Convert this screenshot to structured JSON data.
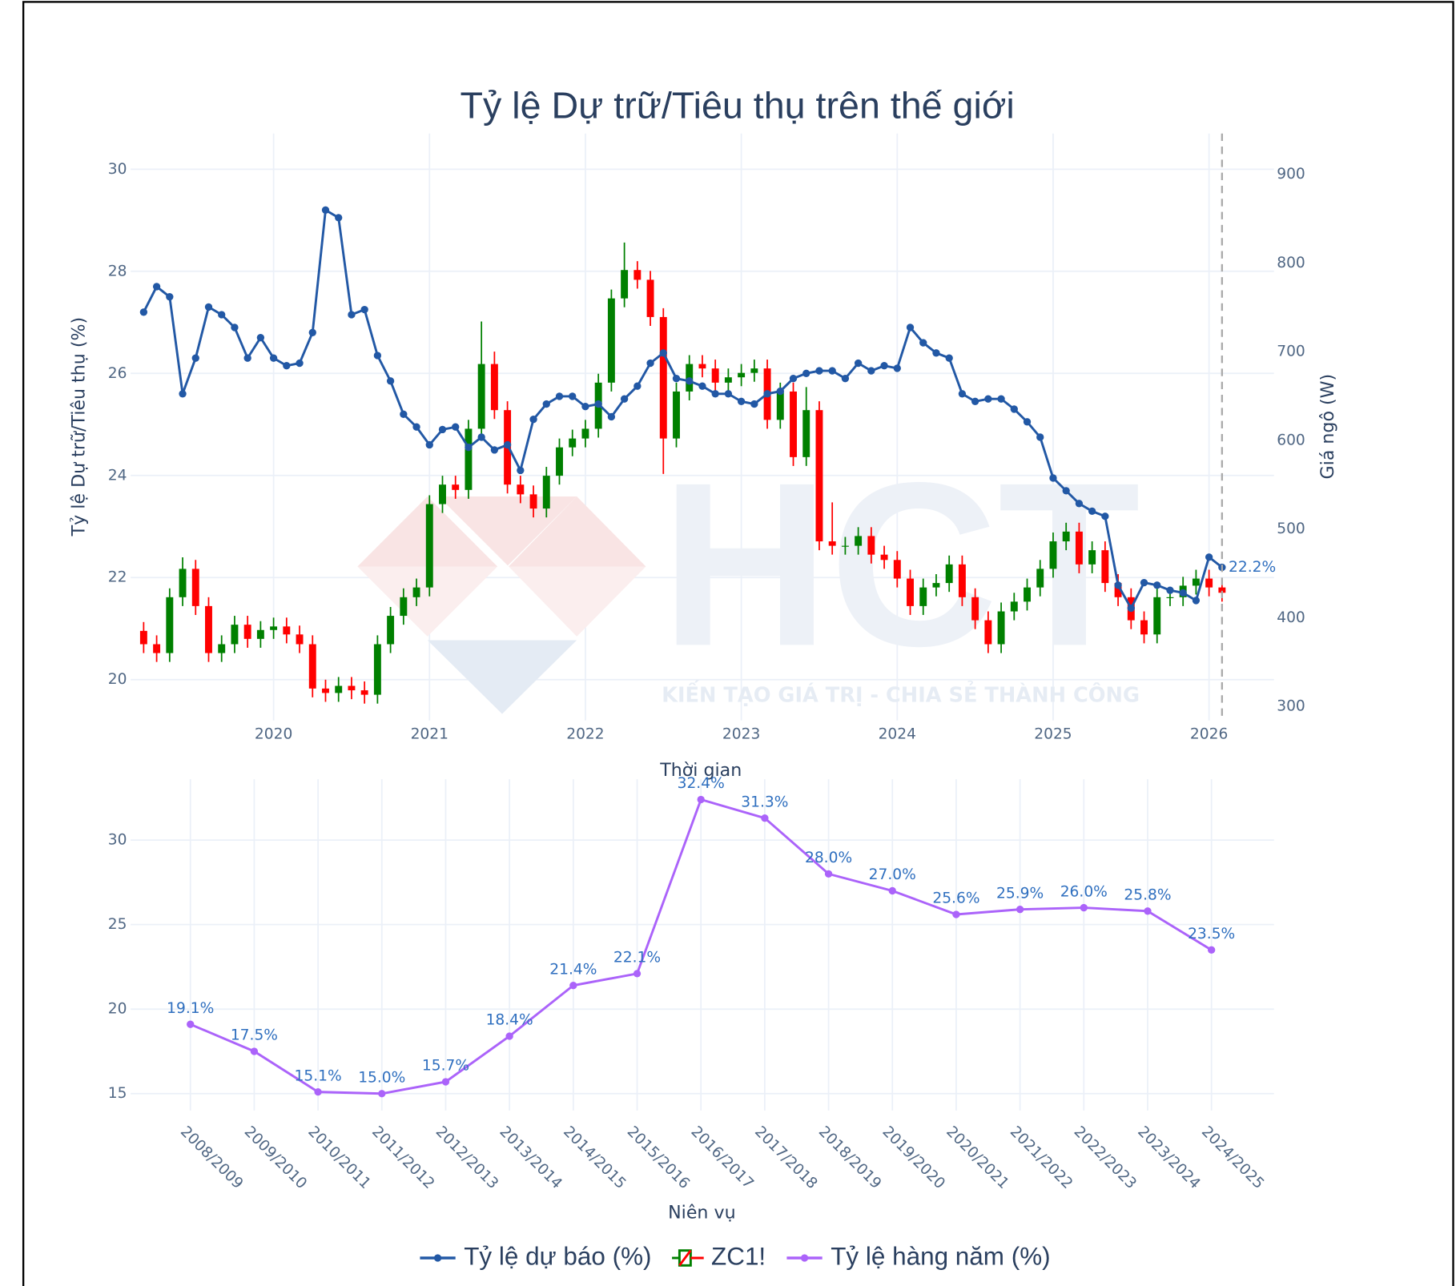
{
  "chart_data": [
    {
      "type": "line",
      "title": "Tỷ lệ Dự trữ/Tiêu thụ trên thế giới",
      "xlabel": "Thời gian",
      "ylabel": "Tỷ lệ Dự trữ/Tiêu thụ (%)",
      "y2label": "Giá ngô (W)",
      "watermark": {
        "logo": "HCT",
        "tagline": "KIẾN TẠO GIÁ TRỊ - CHIA SẺ THÀNH CÔNG"
      },
      "annotations": [
        {
          "text": "22.2%"
        }
      ],
      "grid": true,
      "legend": "bottom",
      "xlim": [
        "2019-02",
        "2026-06"
      ],
      "xticks": [
        2020,
        2021,
        2022,
        2023,
        2024,
        2025,
        2026
      ],
      "ylim": [
        19.2,
        30.7
      ],
      "yticks": [
        20,
        22,
        24,
        26,
        28,
        30
      ],
      "y2lim": [
        284,
        946
      ],
      "y2ticks": [
        300,
        400,
        500,
        600,
        700,
        800,
        900
      ],
      "x": [
        "2019-03",
        "2019-04",
        "2019-05",
        "2019-06",
        "2019-07",
        "2019-08",
        "2019-09",
        "2019-10",
        "2019-11",
        "2019-12",
        "2020-01",
        "2020-02",
        "2020-03",
        "2020-04",
        "2020-05",
        "2020-06",
        "2020-07",
        "2020-08",
        "2020-09",
        "2020-10",
        "2020-11",
        "2020-12",
        "2021-01",
        "2021-02",
        "2021-03",
        "2021-04",
        "2021-05",
        "2021-06",
        "2021-07",
        "2021-08",
        "2021-09",
        "2021-10",
        "2021-11",
        "2021-12",
        "2022-01",
        "2022-02",
        "2022-03",
        "2022-04",
        "2022-05",
        "2022-06",
        "2022-07",
        "2022-08",
        "2022-09",
        "2022-10",
        "2022-11",
        "2022-12",
        "2023-01",
        "2023-02",
        "2023-03",
        "2023-04",
        "2023-05",
        "2023-06",
        "2023-07",
        "2023-08",
        "2023-09",
        "2023-10",
        "2023-11",
        "2023-12",
        "2024-01",
        "2024-02",
        "2024-03",
        "2024-04",
        "2024-05",
        "2024-06",
        "2024-07",
        "2024-08",
        "2024-09",
        "2024-10",
        "2024-11",
        "2024-12",
        "2025-01",
        "2025-02",
        "2025-03",
        "2025-04",
        "2025-05",
        "2025-06",
        "2025-07",
        "2025-08",
        "2025-09",
        "2025-10",
        "2025-11",
        "2025-12",
        "2026-01",
        "2026-02"
      ],
      "series": [
        {
          "name": "Tỷ lệ dự báo (%)",
          "type": "line",
          "color": "#2258a5",
          "values": [
            27.2,
            27.7,
            27.5,
            25.6,
            26.3,
            27.3,
            27.15,
            26.9,
            26.3,
            26.7,
            26.3,
            26.15,
            26.2,
            26.8,
            29.2,
            29.05,
            27.15,
            27.25,
            26.35,
            25.85,
            25.2,
            24.95,
            24.6,
            24.9,
            24.95,
            24.55,
            24.75,
            24.5,
            24.6,
            24.1,
            25.1,
            25.4,
            25.55,
            25.55,
            25.35,
            25.4,
            25.15,
            25.5,
            25.75,
            26.2,
            26.4,
            25.9,
            25.85,
            25.75,
            25.6,
            25.6,
            25.45,
            25.4,
            25.6,
            25.65,
            25.9,
            26.0,
            26.05,
            26.05,
            25.9,
            26.2,
            26.05,
            26.15,
            26.1,
            26.9,
            26.6,
            26.4,
            26.3,
            25.6,
            25.45,
            25.5,
            25.5,
            25.3,
            25.05,
            24.75,
            23.95,
            23.7,
            23.45,
            23.3,
            23.2,
            21.85,
            21.4,
            21.9,
            21.85,
            21.75,
            21.7,
            21.55,
            22.4,
            22.2
          ]
        },
        {
          "name": "ZC1!",
          "type": "candlestick",
          "axis": "y2",
          "increasing_color": "#008000",
          "decreasing_color": "#ff0000",
          "open": [
            385,
            370,
            360,
            423,
            455,
            413,
            360,
            370,
            392,
            376,
            386,
            390,
            381,
            370,
            320,
            315,
            323,
            318,
            313,
            370,
            402,
            423,
            434,
            528,
            550,
            544,
            613,
            686,
            634,
            550,
            539,
            523,
            560,
            592,
            602,
            613,
            665,
            760,
            792,
            781,
            739,
            602,
            655,
            686,
            681,
            665,
            671,
            676,
            681,
            623,
            655,
            581,
            634,
            486,
            481,
            481,
            492,
            471,
            465,
            444,
            413,
            434,
            439,
            460,
            423,
            397,
            370,
            407,
            418,
            434,
            455,
            486,
            497,
            460,
            476,
            439,
            423,
            397,
            381,
            423,
            423,
            436,
            444,
            434
          ],
          "high": [
            395,
            380,
            433,
            468,
            465,
            423,
            380,
            402,
            402,
            396,
            400,
            400,
            391,
            380,
            330,
            333,
            333,
            328,
            380,
            412,
            433,
            444,
            538,
            560,
            560,
            623,
            734,
            700,
            644,
            560,
            549,
            570,
            602,
            612,
            623,
            675,
            770,
            823,
            802,
            791,
            749,
            665,
            696,
            696,
            691,
            681,
            686,
            691,
            691,
            665,
            665,
            660,
            644,
            530,
            491,
            502,
            502,
            481,
            475,
            454,
            444,
            449,
            470,
            470,
            433,
            407,
            417,
            428,
            444,
            465,
            496,
            507,
            507,
            486,
            486,
            449,
            433,
            407,
            433,
            433,
            446,
            454,
            454,
            444
          ],
          "low": [
            360,
            350,
            350,
            413,
            403,
            350,
            350,
            360,
            366,
            366,
            376,
            371,
            360,
            310,
            305,
            305,
            308,
            303,
            303,
            360,
            392,
            413,
            424,
            518,
            534,
            534,
            603,
            624,
            540,
            529,
            513,
            513,
            550,
            582,
            592,
            603,
            655,
            750,
            771,
            729,
            562,
            592,
            645,
            671,
            655,
            655,
            661,
            666,
            613,
            613,
            571,
            571,
            476,
            471,
            471,
            471,
            461,
            455,
            434,
            403,
            403,
            424,
            429,
            413,
            387,
            360,
            360,
            397,
            408,
            424,
            445,
            476,
            450,
            450,
            429,
            413,
            387,
            371,
            371,
            413,
            413,
            426,
            424,
            418
          ],
          "close": [
            370,
            360,
            423,
            455,
            413,
            360,
            370,
            392,
            376,
            386,
            390,
            381,
            370,
            320,
            315,
            323,
            318,
            313,
            370,
            402,
            423,
            434,
            528,
            550,
            544,
            613,
            686,
            634,
            550,
            539,
            523,
            560,
            592,
            602,
            613,
            665,
            760,
            792,
            781,
            739,
            602,
            655,
            686,
            681,
            665,
            671,
            676,
            681,
            623,
            655,
            581,
            634,
            486,
            481,
            481,
            492,
            471,
            465,
            444,
            413,
            434,
            439,
            460,
            423,
            397,
            370,
            407,
            418,
            434,
            455,
            486,
            497,
            460,
            476,
            439,
            423,
            397,
            381,
            423,
            423,
            436,
            444,
            434,
            428
          ]
        }
      ]
    },
    {
      "type": "line",
      "xlabel": "Niên vụ",
      "grid": true,
      "ylim": [
        14,
        33.6
      ],
      "yticks": [
        15,
        20,
        25,
        30
      ],
      "categories": [
        "2008/2009",
        "2009/2010",
        "2010/2011",
        "2011/2012",
        "2012/2013",
        "2013/2014",
        "2014/2015",
        "2015/2016",
        "2016/2017",
        "2017/2018",
        "2018/2019",
        "2019/2020",
        "2020/2021",
        "2021/2022",
        "2022/2023",
        "2023/2024",
        "2024/2025"
      ],
      "series": [
        {
          "name": "Tỷ lệ hàng năm (%)",
          "color": "#ab63fa",
          "label_color": "#2f6fbf",
          "values": [
            19.1,
            17.5,
            15.1,
            15.0,
            15.7,
            18.4,
            21.4,
            22.1,
            32.4,
            31.3,
            28.0,
            27.0,
            25.6,
            25.9,
            26.0,
            25.8,
            23.5
          ],
          "value_labels": [
            "19.1%",
            "17.5%",
            "15.1%",
            "15.0%",
            "15.7%",
            "18.4%",
            "21.4%",
            "22.1%",
            "32.4%",
            "31.3%",
            "28.0%",
            "27.0%",
            "25.6%",
            "25.9%",
            "26.0%",
            "25.8%",
            "23.5%"
          ]
        }
      ]
    }
  ]
}
